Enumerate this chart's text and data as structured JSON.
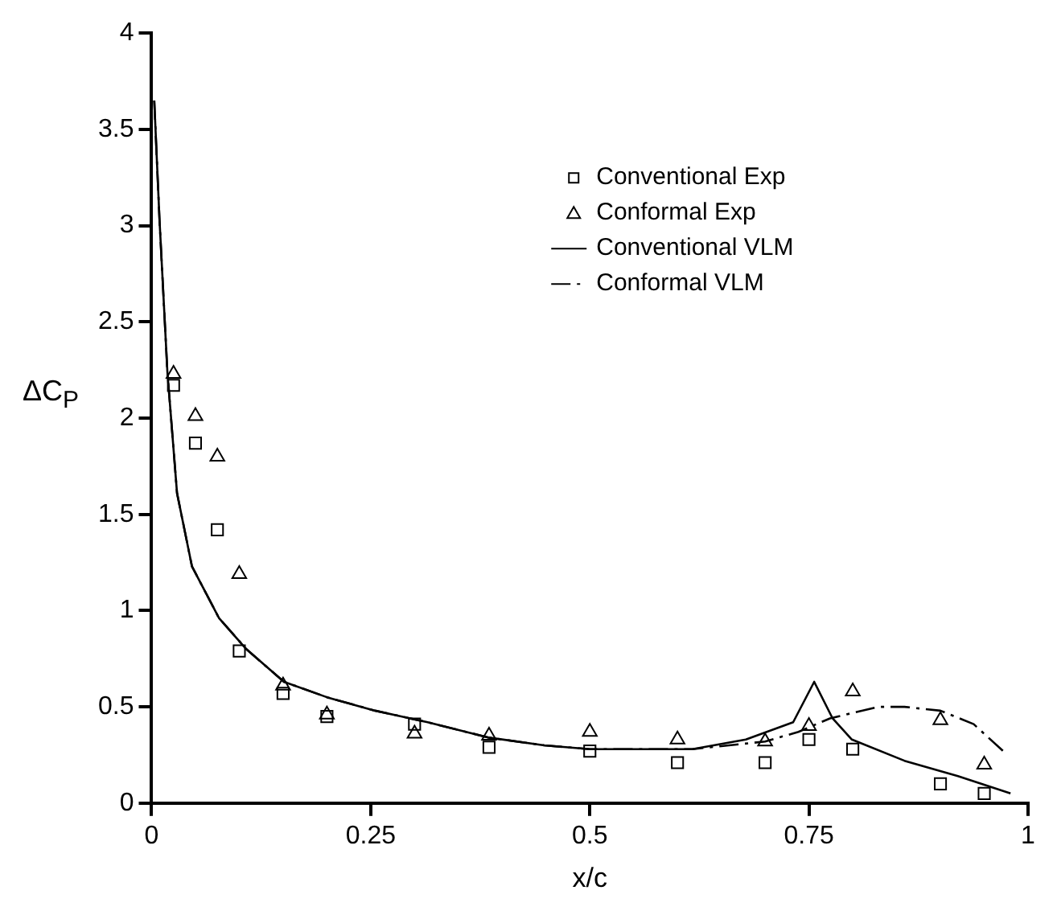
{
  "chart_data": {
    "type": "line",
    "xlabel": "x/c",
    "ylabel": "ΔC$_{P}$",
    "xlim": [
      0,
      1
    ],
    "xticks": [
      0,
      0.25,
      0.5,
      0.75,
      1
    ],
    "ylim": [
      0,
      4
    ],
    "yticks": [
      0,
      0.5,
      1,
      1.5,
      2,
      2.5,
      3,
      3.5,
      4
    ],
    "grid": false,
    "legend": "top",
    "series": [
      {
        "name": "Conventional Exp",
        "type": "scatter",
        "marker": "square",
        "color": "#000000",
        "x": [
          0.025,
          0.05,
          0.075,
          0.1,
          0.15,
          0.2,
          0.3,
          0.385,
          0.5,
          0.6,
          0.7,
          0.75,
          0.8,
          0.9,
          0.95
        ],
        "values": [
          2.17,
          1.87,
          1.42,
          0.79,
          0.57,
          0.45,
          0.41,
          0.29,
          0.27,
          0.21,
          0.21,
          0.33,
          0.28,
          0.1,
          0.05
        ]
      },
      {
        "name": "Conformal Exp",
        "type": "scatter",
        "marker": "triangle",
        "color": "#000000",
        "x": [
          0.025,
          0.05,
          0.075,
          0.1,
          0.15,
          0.2,
          0.3,
          0.385,
          0.5,
          0.6,
          0.7,
          0.75,
          0.8,
          0.9,
          0.95
        ],
        "values": [
          2.23,
          2.01,
          1.8,
          1.19,
          0.61,
          0.46,
          0.36,
          0.35,
          0.37,
          0.33,
          0.32,
          0.4,
          0.58,
          0.43,
          0.2
        ]
      },
      {
        "name": "Conventional VLM",
        "type": "line",
        "marker": "none",
        "line_style": "solid",
        "color": "#000000",
        "x": [
          0.003,
          0.009,
          0.018,
          0.029,
          0.046,
          0.077,
          0.108,
          0.151,
          0.2,
          0.255,
          0.315,
          0.385,
          0.448,
          0.5,
          0.557,
          0.617,
          0.678,
          0.732,
          0.756,
          0.777,
          0.799,
          0.859,
          0.92,
          0.98
        ],
        "values": [
          3.65,
          3.03,
          2.24,
          1.61,
          1.23,
          0.96,
          0.8,
          0.63,
          0.55,
          0.48,
          0.42,
          0.34,
          0.3,
          0.28,
          0.28,
          0.28,
          0.33,
          0.42,
          0.63,
          0.44,
          0.33,
          0.22,
          0.14,
          0.05
        ]
      },
      {
        "name": "Conformal VLM",
        "type": "line",
        "marker": "none",
        "line_style": "dashed",
        "color": "#000000",
        "x": [
          0.003,
          0.009,
          0.018,
          0.029,
          0.046,
          0.077,
          0.108,
          0.151,
          0.2,
          0.255,
          0.315,
          0.385,
          0.448,
          0.5,
          0.557,
          0.617,
          0.7,
          0.738,
          0.774,
          0.829,
          0.859,
          0.9,
          0.938,
          0.974
        ],
        "values": [
          3.65,
          3.03,
          2.24,
          1.61,
          1.23,
          0.96,
          0.8,
          0.63,
          0.55,
          0.48,
          0.42,
          0.34,
          0.3,
          0.28,
          0.28,
          0.28,
          0.32,
          0.37,
          0.44,
          0.5,
          0.5,
          0.48,
          0.41,
          0.26
        ]
      }
    ]
  }
}
